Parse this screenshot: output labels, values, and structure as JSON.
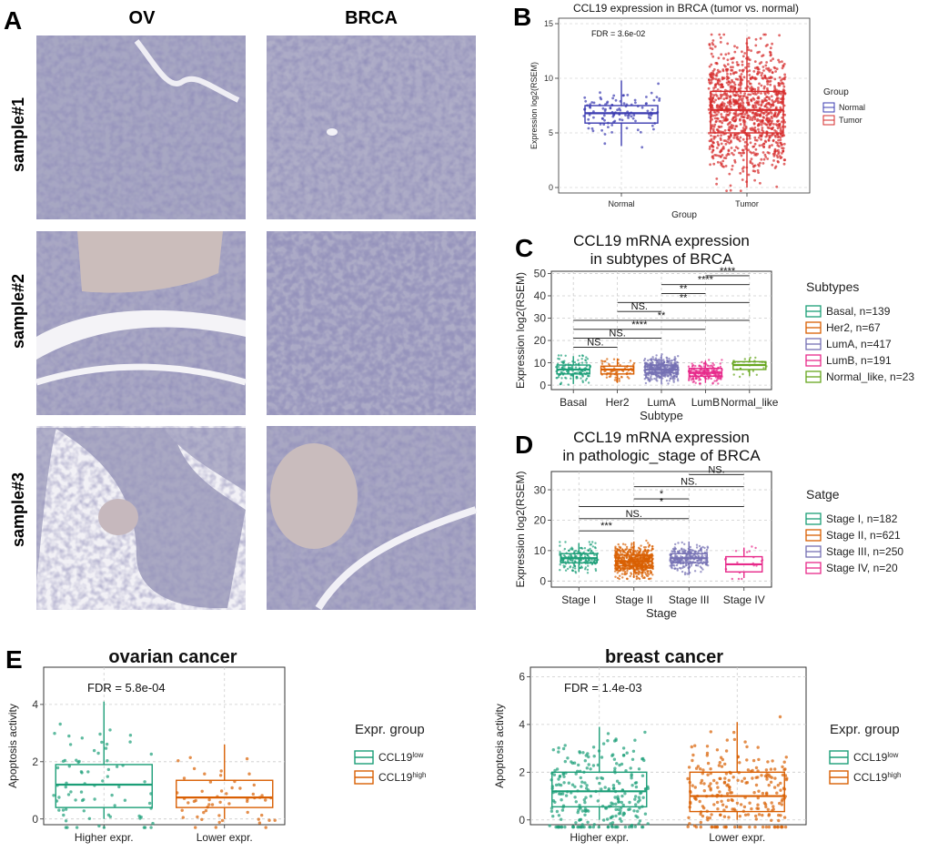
{
  "panelA": {
    "letter": "A",
    "columns": [
      "OV",
      "BRCA"
    ],
    "rows": [
      "sample#1",
      "sample#2",
      "sample#3"
    ]
  },
  "chart_data": [
    {
      "panel": "B",
      "type": "box",
      "title": "CCL19 expression in BRCA (tumor vs. normal)",
      "xlabel": "Group",
      "ylabel": "Expression log2(RSEM)",
      "categories": [
        "Normal",
        "Tumor"
      ],
      "ylim": [
        -0.5,
        15.5
      ],
      "yticks": [
        0,
        5,
        10,
        15
      ],
      "boxes": [
        {
          "q1": 5.9,
          "median": 6.8,
          "q3": 7.5,
          "whisker_low": 3.8,
          "whisker_high": 9.8
        },
        {
          "q1": 5.0,
          "median": 7.1,
          "q3": 8.8,
          "whisker_low": 0.0,
          "whisker_high": 13.7
        }
      ],
      "point_counts": [
        110,
        1100
      ],
      "colors": [
        "#3b3bb0",
        "#d62b2b"
      ],
      "annotation": "FDR = 3.6e-02",
      "legend": {
        "title": "Group",
        "entries": [
          "Normal",
          "Tumor"
        ],
        "position": "right"
      },
      "grid": true
    },
    {
      "panel": "C",
      "type": "box",
      "title": [
        "CCL19 mRNA expression",
        "in subtypes of BRCA"
      ],
      "xlabel": "Subtype",
      "ylabel": "Expression log2(RSEM)",
      "categories": [
        "Basal",
        "Her2",
        "LumA",
        "LumB",
        "Normal_like"
      ],
      "ylim": [
        -2,
        51
      ],
      "yticks": [
        0,
        10,
        20,
        30,
        40,
        50
      ],
      "boxes": [
        {
          "q1": 5.0,
          "median": 7.0,
          "q3": 9.0,
          "whisker_low": 0.5,
          "whisker_high": 13.0
        },
        {
          "q1": 5.0,
          "median": 7.0,
          "q3": 8.5,
          "whisker_low": 1.0,
          "whisker_high": 12.0
        },
        {
          "q1": 5.5,
          "median": 7.0,
          "q3": 9.0,
          "whisker_low": 1.0,
          "whisker_high": 13.5
        },
        {
          "q1": 4.0,
          "median": 5.5,
          "q3": 7.5,
          "whisker_low": 1.0,
          "whisker_high": 11.0
        },
        {
          "q1": 7.0,
          "median": 9.0,
          "q3": 10.5,
          "whisker_low": 4.0,
          "whisker_high": 12.0
        }
      ],
      "point_counts": [
        139,
        67,
        417,
        191,
        23
      ],
      "colors": [
        "#1b9e77",
        "#d95f02",
        "#7570b3",
        "#e7298a",
        "#66a61e"
      ],
      "comparisons": [
        {
          "a": 0,
          "b": 1,
          "y": 17,
          "label": "NS."
        },
        {
          "a": 0,
          "b": 2,
          "y": 21,
          "label": "NS."
        },
        {
          "a": 0,
          "b": 3,
          "y": 25,
          "label": "****"
        },
        {
          "a": 0,
          "b": 4,
          "y": 29,
          "label": "**"
        },
        {
          "a": 1,
          "b": 2,
          "y": 33,
          "label": "NS."
        },
        {
          "a": 1,
          "b": 4,
          "y": 37,
          "label": "**"
        },
        {
          "a": 2,
          "b": 3,
          "y": 41,
          "label": "**"
        },
        {
          "a": 2,
          "b": 4,
          "y": 45,
          "label": "****"
        },
        {
          "a": 3,
          "b": 4,
          "y": 49,
          "label": "****"
        }
      ],
      "legend": {
        "title": "Subtypes",
        "entries": [
          "Basal, n=139",
          "Her2, n=67",
          "LumA, n=417",
          "LumB, n=191",
          "Normal_like, n=23"
        ],
        "position": "right"
      },
      "grid": true
    },
    {
      "panel": "D",
      "type": "box",
      "title": [
        "CCL19 mRNA expression",
        "in pathologic_stage of BRCA"
      ],
      "xlabel": "Stage",
      "ylabel": "Expression log2(RSEM)",
      "categories": [
        "Stage I",
        "Stage II",
        "Stage III",
        "Stage IV"
      ],
      "ylim": [
        -2,
        36
      ],
      "yticks": [
        0,
        10,
        20,
        30
      ],
      "boxes": [
        {
          "q1": 6.0,
          "median": 7.5,
          "q3": 9.0,
          "whisker_low": 3.0,
          "whisker_high": 12.5
        },
        {
          "q1": 5.0,
          "median": 6.5,
          "q3": 8.5,
          "whisker_low": 1.0,
          "whisker_high": 13.0
        },
        {
          "q1": 6.0,
          "median": 7.5,
          "q3": 9.0,
          "whisker_low": 2.0,
          "whisker_high": 13.0
        },
        {
          "q1": 3.0,
          "median": 5.5,
          "q3": 8.0,
          "whisker_low": 1.0,
          "whisker_high": 11.0
        }
      ],
      "point_counts": [
        182,
        621,
        250,
        20
      ],
      "colors": [
        "#1b9e77",
        "#d95f02",
        "#7570b3",
        "#e7298a"
      ],
      "comparisons": [
        {
          "a": 0,
          "b": 1,
          "y": 16.5,
          "label": "***"
        },
        {
          "a": 0,
          "b": 2,
          "y": 20.5,
          "label": "NS."
        },
        {
          "a": 0,
          "b": 3,
          "y": 24.5,
          "label": "*"
        },
        {
          "a": 1,
          "b": 2,
          "y": 27,
          "label": "*"
        },
        {
          "a": 1,
          "b": 3,
          "y": 31,
          "label": "NS."
        },
        {
          "a": 2,
          "b": 3,
          "y": 35,
          "label": "NS."
        }
      ],
      "legend": {
        "title": "Satge",
        "entries": [
          "Stage I, n=182",
          "Stage II, n=621",
          "Stage III, n=250",
          "Stage IV, n=20"
        ],
        "position": "right"
      },
      "grid": true
    },
    {
      "panel": "E",
      "type": "box",
      "title": "ovarian cancer",
      "ylabel": "Apoptosis activity",
      "categories": [
        "Higher expr.",
        "Lower expr."
      ],
      "ylim": [
        -0.2,
        5.3
      ],
      "yticks": [
        0,
        2,
        4
      ],
      "boxes": [
        {
          "q1": 0.4,
          "median": 1.2,
          "q3": 1.9,
          "whisker_low": 0.0,
          "whisker_high": 4.1
        },
        {
          "q1": 0.4,
          "median": 0.75,
          "q3": 1.35,
          "whisker_low": 0.0,
          "whisker_high": 2.6
        }
      ],
      "point_counts": [
        75,
        55
      ],
      "colors": [
        "#1b9e77",
        "#d95f02"
      ],
      "annotation": "FDR = 5.8e-04",
      "legend": {
        "title": "Expr. group",
        "entries": [
          "CCL19|low",
          "CCL19|high"
        ],
        "position": "right"
      },
      "grid": true
    },
    {
      "panel": "E2",
      "type": "box",
      "title": "breast cancer",
      "ylabel": "Apoptosis activity",
      "categories": [
        "Higher expr.",
        "Lower expr."
      ],
      "ylim": [
        -0.2,
        6.4
      ],
      "yticks": [
        0,
        2,
        4,
        6
      ],
      "boxes": [
        {
          "q1": 0.55,
          "median": 1.2,
          "q3": 2.0,
          "whisker_low": 0.0,
          "whisker_high": 3.9
        },
        {
          "q1": 0.35,
          "median": 1.0,
          "q3": 2.0,
          "whisker_low": 0.0,
          "whisker_high": 4.1
        }
      ],
      "point_counts": [
        260,
        240
      ],
      "colors": [
        "#1b9e77",
        "#d95f02"
      ],
      "annotation": "FDR = 1.4e-03",
      "legend": {
        "title": "Expr. group",
        "entries": [
          "CCL19|low",
          "CCL19|high"
        ],
        "position": "right"
      },
      "grid": true
    }
  ],
  "letters": {
    "B": "B",
    "C": "C",
    "D": "D",
    "E": "E"
  }
}
